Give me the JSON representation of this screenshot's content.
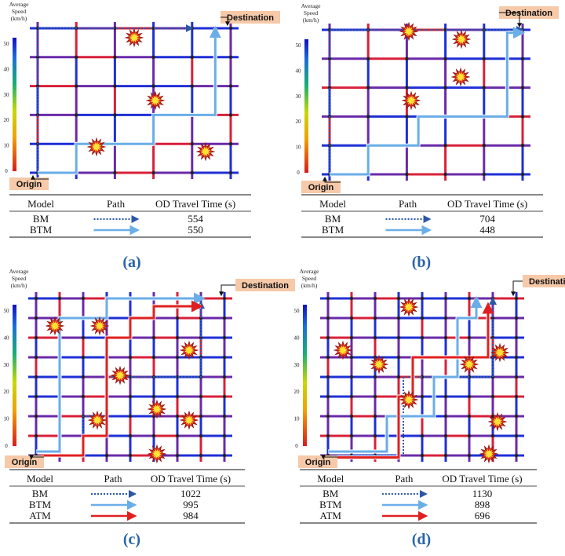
{
  "colors": {
    "road_fast": "#1f2fd6",
    "road_mid": "#6a2aa8",
    "road_slow": "#d8203a",
    "bm_path": "#2b57a6",
    "btm_path": "#6aaee8",
    "atm_path": "#e02020",
    "label_box": "#f6c9a8",
    "panel_label": "#2a63a8"
  },
  "colorbar": {
    "title_lines": [
      "Average",
      "Speed",
      "(km/h)"
    ],
    "ticks": [
      "0",
      "10",
      "20",
      "30",
      "40",
      "50"
    ]
  },
  "labels": {
    "origin": "Origin",
    "destination": "Destination"
  },
  "table_headers": {
    "model": "Model",
    "path": "Path",
    "time": "OD Travel Time (s)"
  },
  "panels": [
    {
      "id": "a",
      "label": "(a)",
      "rows": [
        {
          "model": "BM",
          "style": "bm",
          "time": "554"
        },
        {
          "model": "BTM",
          "style": "btm",
          "time": "550"
        }
      ]
    },
    {
      "id": "b",
      "label": "(b)",
      "rows": [
        {
          "model": "BM",
          "style": "bm",
          "time": "704"
        },
        {
          "model": "BTM",
          "style": "btm",
          "time": "448"
        }
      ]
    },
    {
      "id": "c",
      "label": "(c)",
      "rows": [
        {
          "model": "BM",
          "style": "bm",
          "time": "1022"
        },
        {
          "model": "BTM",
          "style": "btm",
          "time": "995"
        },
        {
          "model": "ATM",
          "style": "atm",
          "time": "984"
        }
      ]
    },
    {
      "id": "d",
      "label": "(d)",
      "rows": [
        {
          "model": "BM",
          "style": "bm",
          "time": "1130"
        },
        {
          "model": "BTM",
          "style": "btm",
          "time": "898"
        },
        {
          "model": "ATM",
          "style": "atm",
          "time": "696"
        }
      ]
    }
  ]
}
